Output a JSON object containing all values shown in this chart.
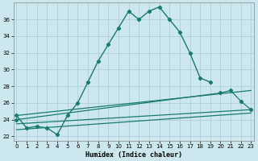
{
  "xlabel": "Humidex (Indice chaleur)",
  "background_color": "#cce8ee",
  "grid_color": "#aaccd4",
  "line_color": "#1a7a6e",
  "line1_x": [
    0,
    1,
    2,
    3,
    4,
    5,
    6,
    7,
    8,
    9,
    10,
    11,
    12,
    13,
    14,
    15,
    16,
    17,
    18,
    19,
    20,
    21,
    22,
    23
  ],
  "line1_y": [
    24.5,
    23.0,
    23.2,
    23.0,
    22.2,
    24.5,
    26.0,
    28.5,
    31.0,
    33.0,
    35.0,
    37.0,
    36.0,
    37.0,
    37.5,
    36.0,
    34.5,
    32.0,
    29.0,
    28.5,
    null,
    null,
    null,
    null
  ],
  "line2_x": [
    0,
    23
  ],
  "line2_y": [
    24.5,
    27.5
  ],
  "line3_x": [
    0,
    20,
    21,
    22,
    23
  ],
  "line3_y": [
    24.0,
    27.2,
    27.5,
    26.2,
    25.2
  ],
  "line4_x": [
    0,
    23
  ],
  "line4_y": [
    23.5,
    25.2
  ],
  "line5_x": [
    0,
    23
  ],
  "line5_y": [
    22.8,
    24.8
  ],
  "ylim": [
    21.5,
    38
  ],
  "xlim": [
    -0.3,
    23.3
  ],
  "yticks": [
    22,
    24,
    26,
    28,
    30,
    32,
    34,
    36
  ],
  "xticks": [
    0,
    1,
    2,
    3,
    4,
    5,
    6,
    7,
    8,
    9,
    10,
    11,
    12,
    13,
    14,
    15,
    16,
    17,
    18,
    19,
    20,
    21,
    22,
    23
  ]
}
